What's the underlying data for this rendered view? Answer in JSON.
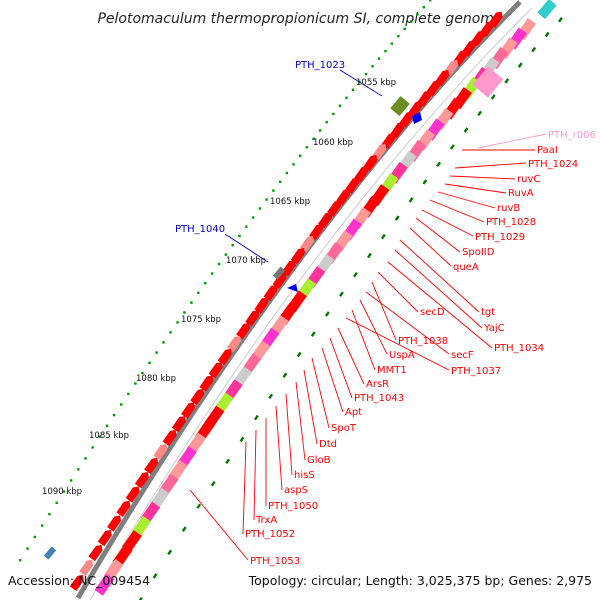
{
  "title": "Pelotomaculum thermopropionicum SI, complete genome",
  "footer": {
    "accession": "Accession: NC_009454",
    "topology": "Topology: circular; Length: 3,025,375 bp; Genes: 2,975"
  },
  "colors": {
    "backbone": "#7f7f7f",
    "gene": "#ff0000",
    "label_red": "#ff0000",
    "label_blue": "#0000cc",
    "label_pink": "#ff99cc",
    "tick": "#007700"
  },
  "kbp_ticks": [
    "1055 kbp",
    "1060 kbp",
    "1065 kbp",
    "1070 kbp",
    "1075 kbp",
    "1080 kbp",
    "1085 kbp",
    "1090 kbp"
  ],
  "labels_blue": [
    "PTH_1023",
    "PTH_1040"
  ],
  "labels_pink": [
    "PTH_r006"
  ],
  "labels_red": [
    "PaaI",
    "PTH_1024",
    "ruvC",
    "RuvA",
    "ruvB",
    "PTH_1028",
    "PTH_1029",
    "SpoIID",
    "queA",
    "tgt",
    "YajC",
    "PTH_1034",
    "secD",
    "PTH_1038",
    "secF",
    "UspA",
    "MMT1",
    "PTH_1037",
    "ArsR",
    "PTH_1043",
    "Apt",
    "SpoT",
    "Dtd",
    "GloB",
    "hisS",
    "aspS",
    "PTH_1050",
    "TrxA",
    "PTH_1052",
    "PTH_1053"
  ]
}
